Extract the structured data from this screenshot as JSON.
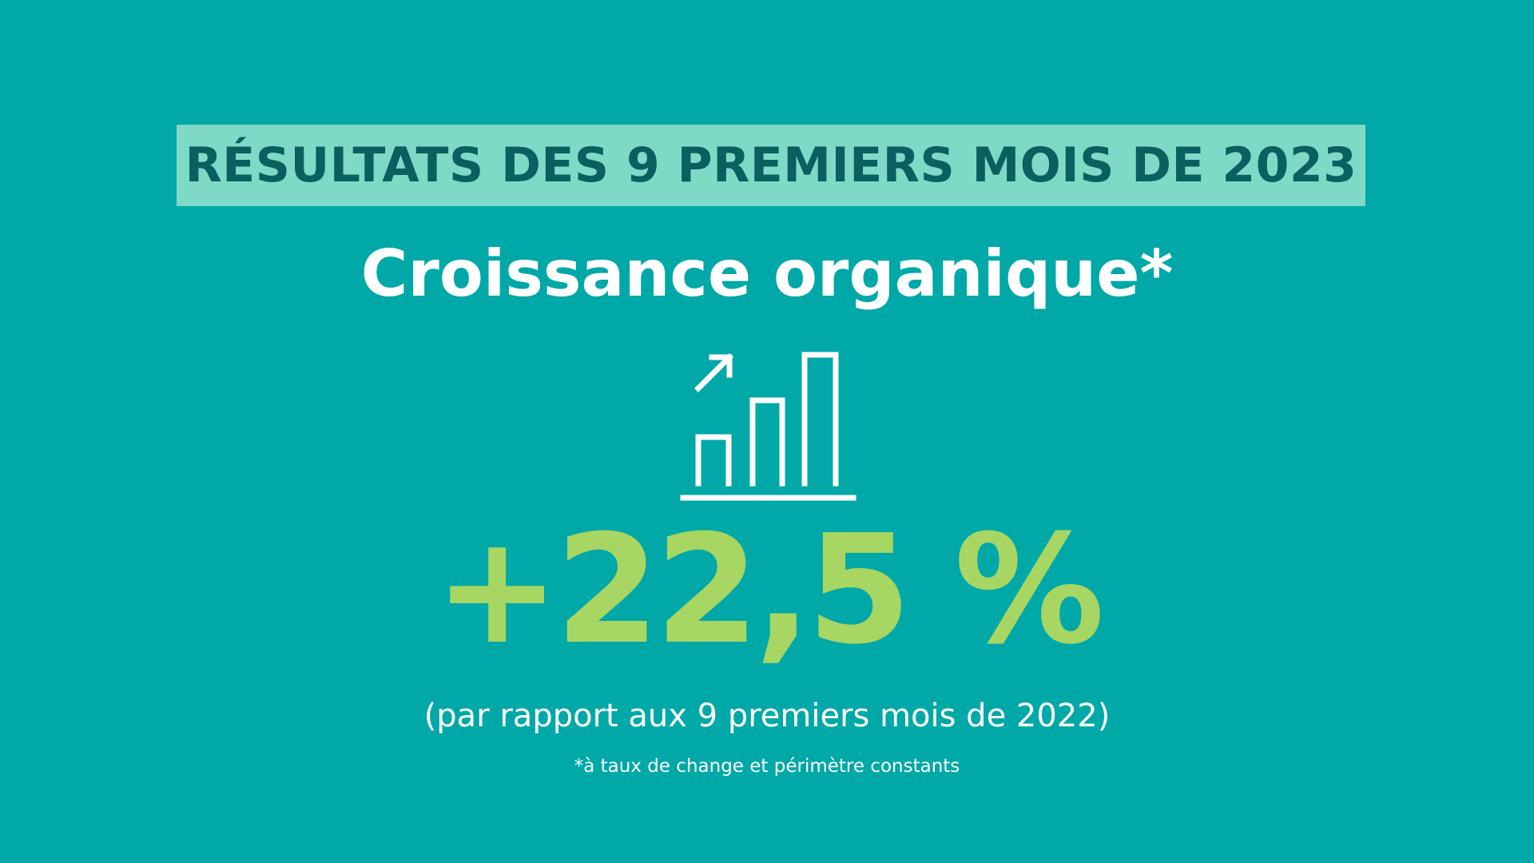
{
  "banner": {
    "title": "RÉSULTATS DES 9 PREMIERS MOIS DE 2023"
  },
  "headline": {
    "subtitle": "Croissance organique*"
  },
  "icon": {
    "name": "bar-chart-growth-icon"
  },
  "kpi": {
    "value": "+22,5 %",
    "comparison": "(par rapport aux 9 premiers mois de 2022)",
    "footnote": "*à taux de change et périmètre constants"
  },
  "colors": {
    "background": "#00a8a8",
    "banner_background": "#7fd9c7",
    "banner_text": "#0a5f5f",
    "accent_green": "#a8d662",
    "white": "#ffffff"
  }
}
